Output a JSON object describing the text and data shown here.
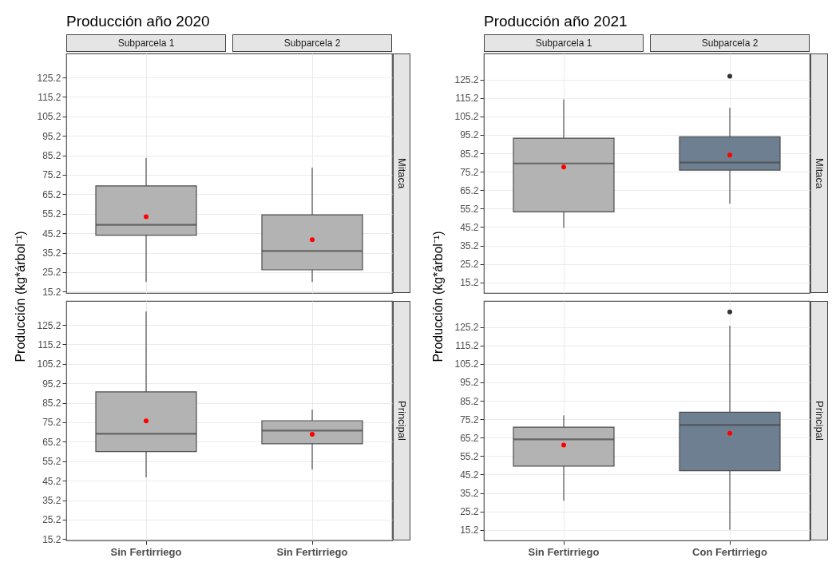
{
  "chart_data": [
    {
      "type": "box",
      "title": "Producción año 2020",
      "ylabel": "Producción (kg*árbol⁻¹)",
      "annotations": [
        "Subparcela 1",
        "Subparcela 2",
        "Mitaca"
      ],
      "categories": [
        null,
        null
      ],
      "series": [
        {
          "color": "#b3b3b3",
          "boxes": [
            {
              "low": 20.2,
              "q1": 44.2,
              "median": 49.5,
              "q3": 69.5,
              "high": 83.8,
              "mean": 53.7
            },
            {
              "low": 20.2,
              "q1": 26.4,
              "median": 36.1,
              "q3": 54.6,
              "high": 78.9,
              "mean": 41.9
            }
          ]
        }
      ],
      "ylim": [
        14.5,
        137.5
      ],
      "yticks": [
        15.2,
        25.2,
        35.2,
        45.2,
        55.2,
        65.2,
        75.2,
        85.2,
        95.2,
        105.2,
        115.2,
        125.2
      ],
      "grid": true,
      "tick_labels": "y"
    },
    {
      "type": "box",
      "annotations": [
        "Principal"
      ],
      "categories": [
        "Sin Fertirriego",
        "Sin Fertirriego"
      ],
      "series": [
        {
          "color": "#b3b3b3",
          "boxes": [
            {
              "low": 46.9,
              "q1": 60.2,
              "median": 69.3,
              "q3": 90.8,
              "high": 132.1,
              "mean": 75.9
            },
            {
              "low": 50.9,
              "q1": 64.2,
              "median": 70.9,
              "q3": 76.0,
              "high": 81.7,
              "mean": 69.0
            }
          ]
        }
      ],
      "ylim": [
        14.5,
        137.5
      ],
      "yticks": [
        15.2,
        25.2,
        35.2,
        45.2,
        55.2,
        65.2,
        75.2,
        85.2,
        95.2,
        105.2,
        115.2,
        125.2
      ],
      "grid": true
    },
    {
      "type": "box",
      "title": "Producción año 2021",
      "ylabel": "Producción (kg*árbol⁻¹)",
      "annotations": [
        "Subparcela 1",
        "Subparcela 2",
        "Mitaca"
      ],
      "categories": [
        null,
        null
      ],
      "series": [
        {
          "color": "#b3b3b3",
          "boxes": [
            {
              "low": 44.8,
              "q1": 53.5,
              "median": 79.7,
              "q3": 93.4,
              "high": 114.4,
              "mean": 77.8
            },
            null
          ]
        },
        {
          "color": "#6e7f91",
          "boxes": [
            null,
            {
              "low": 57.9,
              "q1": 76.1,
              "median": 80.2,
              "q3": 94.1,
              "high": 109.9,
              "mean": 84.2,
              "outliers": [
                127.0
              ]
            }
          ]
        }
      ],
      "ylim": [
        9.5,
        139.3
      ],
      "yticks": [
        15.2,
        25.2,
        35.2,
        45.2,
        55.2,
        65.2,
        75.2,
        85.2,
        95.2,
        105.2,
        115.2,
        125.2
      ],
      "grid": true,
      "tick_labels": "y"
    },
    {
      "type": "box",
      "annotations": [
        "Principal"
      ],
      "categories": [
        "Sin Fertirriego",
        "Con Fertirriego"
      ],
      "series": [
        {
          "color": "#b3b3b3",
          "boxes": [
            {
              "low": 31.0,
              "q1": 49.8,
              "median": 64.3,
              "q3": 70.9,
              "high": 77.3,
              "mean": 61.2
            },
            null
          ]
        },
        {
          "color": "#6e7f91",
          "boxes": [
            null,
            {
              "low": 15.2,
              "q1": 47.3,
              "median": 72.1,
              "q3": 79.0,
              "high": 125.9,
              "mean": 67.6,
              "outliers": [
                133.4
              ]
            }
          ]
        }
      ],
      "ylim": [
        9.5,
        139.3
      ],
      "yticks": [
        15.2,
        25.2,
        35.2,
        45.2,
        55.2,
        65.2,
        75.2,
        85.2,
        95.2,
        105.2,
        115.2,
        125.2
      ],
      "grid": true
    }
  ]
}
